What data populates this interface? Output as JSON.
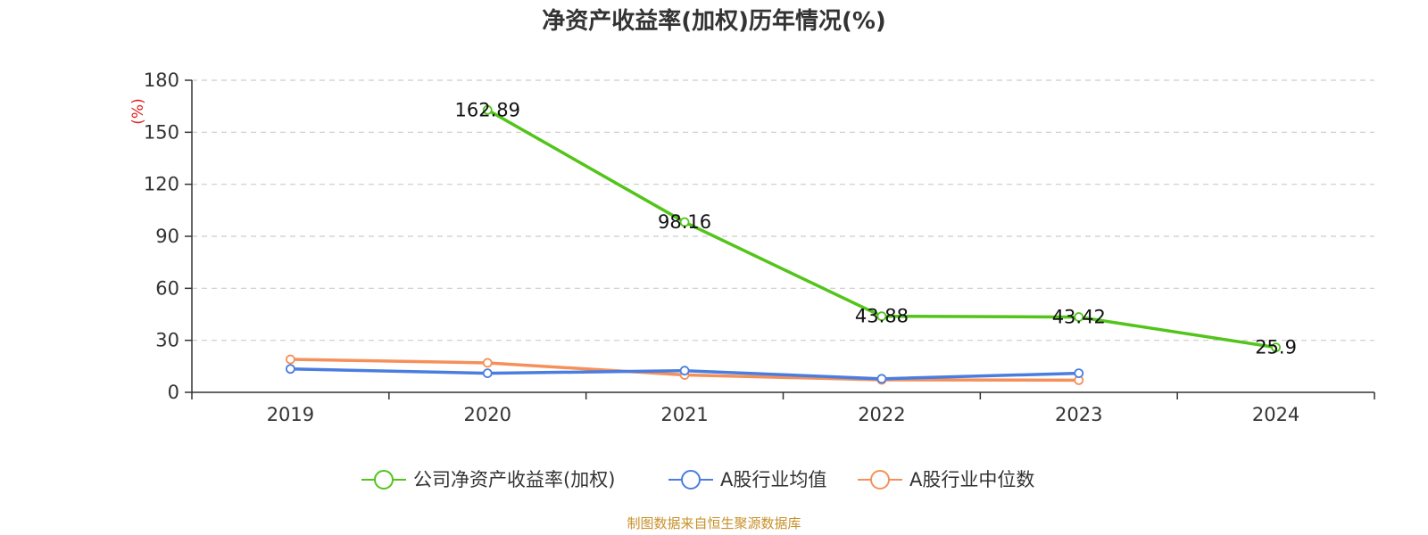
{
  "title": "净资产收益率(加权)历年情况(%)",
  "source": "制图数据来自恒生聚源数据库",
  "chart_data": {
    "type": "line",
    "title": "净资产收益率(加权)历年情况(%)",
    "ylabel": "(%)",
    "categories": [
      "2019",
      "2020",
      "2021",
      "2022",
      "2023",
      "2024"
    ],
    "ylim": [
      0,
      180
    ],
    "yticks": [
      0,
      30,
      60,
      90,
      120,
      150,
      180
    ],
    "grid": true,
    "legend_position": "bottom",
    "series": [
      {
        "name": "公司净资产收益率(加权)",
        "color": "#52c41a",
        "values": [
          null,
          162.89,
          98.16,
          43.88,
          43.42,
          25.9
        ],
        "labels": [
          null,
          "162.89",
          "98.16",
          "43.88",
          "43.42",
          "25.9"
        ]
      },
      {
        "name": "A股行业均值",
        "color": "#4a7de0",
        "values": [
          13.5,
          11.0,
          12.5,
          7.8,
          11.0,
          null
        ]
      },
      {
        "name": "A股行业中位数",
        "color": "#f5905a",
        "values": [
          19.0,
          17.0,
          10.0,
          7.2,
          7.0,
          null
        ]
      }
    ]
  }
}
